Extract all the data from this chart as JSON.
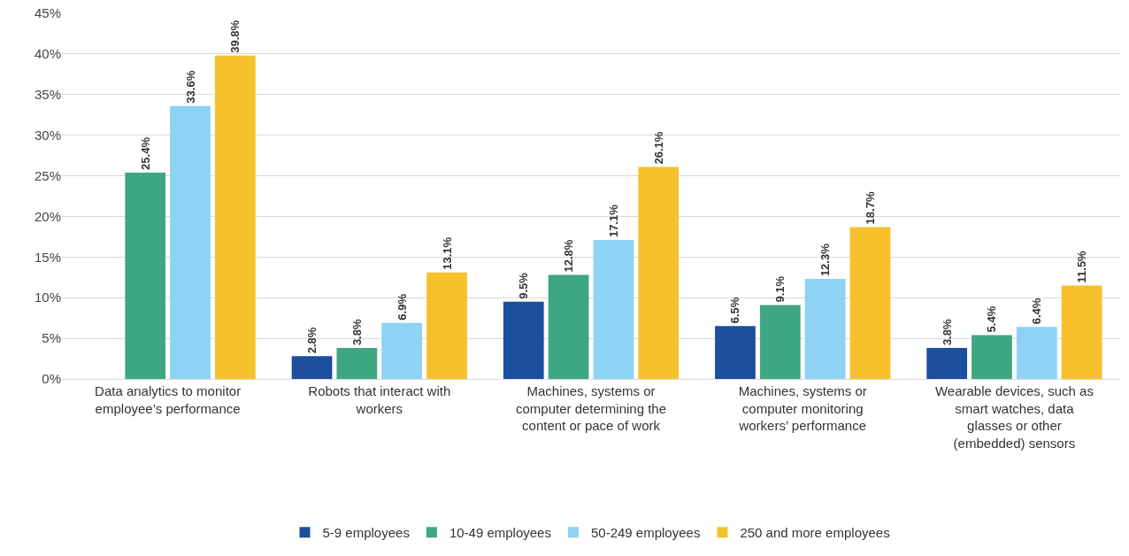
{
  "chart_data": {
    "type": "bar",
    "categories": [
      "Data analytics to monitor employee’s performance",
      "Robots that interact with workers",
      "Machines, systems or computer determining the content or pace of work",
      "Machines, systems or computer monitoring workers’ performance",
      "Wearable devices, such as smart watches, data glasses or other (embedded) sensors"
    ],
    "series": [
      {
        "name": "5-9 employees",
        "color": "#1c4f9c",
        "values": [
          null,
          2.8,
          9.5,
          6.5,
          3.8
        ],
        "value_labels": [
          null,
          "2.8%",
          "9.5%",
          "6.5%",
          "3.8%"
        ]
      },
      {
        "name": "10-49 employees",
        "color": "#3fa682",
        "values": [
          25.4,
          3.8,
          12.8,
          9.1,
          5.4
        ],
        "value_labels": [
          "25.4%",
          "3.8%",
          "12.8%",
          "9.1%",
          "5.4%"
        ]
      },
      {
        "name": "50-249 employees",
        "color": "#8ed2f4",
        "values": [
          33.6,
          6.9,
          17.1,
          12.3,
          6.4
        ],
        "value_labels": [
          "33.6%",
          "6.9%",
          "17.1%",
          "12.3%",
          "6.4%"
        ]
      },
      {
        "name": "250 and more employees",
        "color": "#f6c12c",
        "values": [
          39.8,
          13.1,
          26.1,
          18.7,
          11.5
        ],
        "value_labels": [
          "39.8%",
          "13.1%",
          "26.1%",
          "18.7%",
          "11.5%"
        ]
      }
    ],
    "ylim": [
      0,
      45
    ],
    "yticks": [
      {
        "value": 0,
        "label": "0%"
      },
      {
        "value": 5,
        "label": "5%"
      },
      {
        "value": 10,
        "label": "10%"
      },
      {
        "value": 15,
        "label": "15%"
      },
      {
        "value": 20,
        "label": "20%"
      },
      {
        "value": 25,
        "label": "25%"
      },
      {
        "value": 30,
        "label": "30%"
      },
      {
        "value": 35,
        "label": "35%"
      },
      {
        "value": 40,
        "label": "40%"
      },
      {
        "value": 45,
        "label": "45%"
      }
    ],
    "grid": "y",
    "legend": "bottom"
  }
}
